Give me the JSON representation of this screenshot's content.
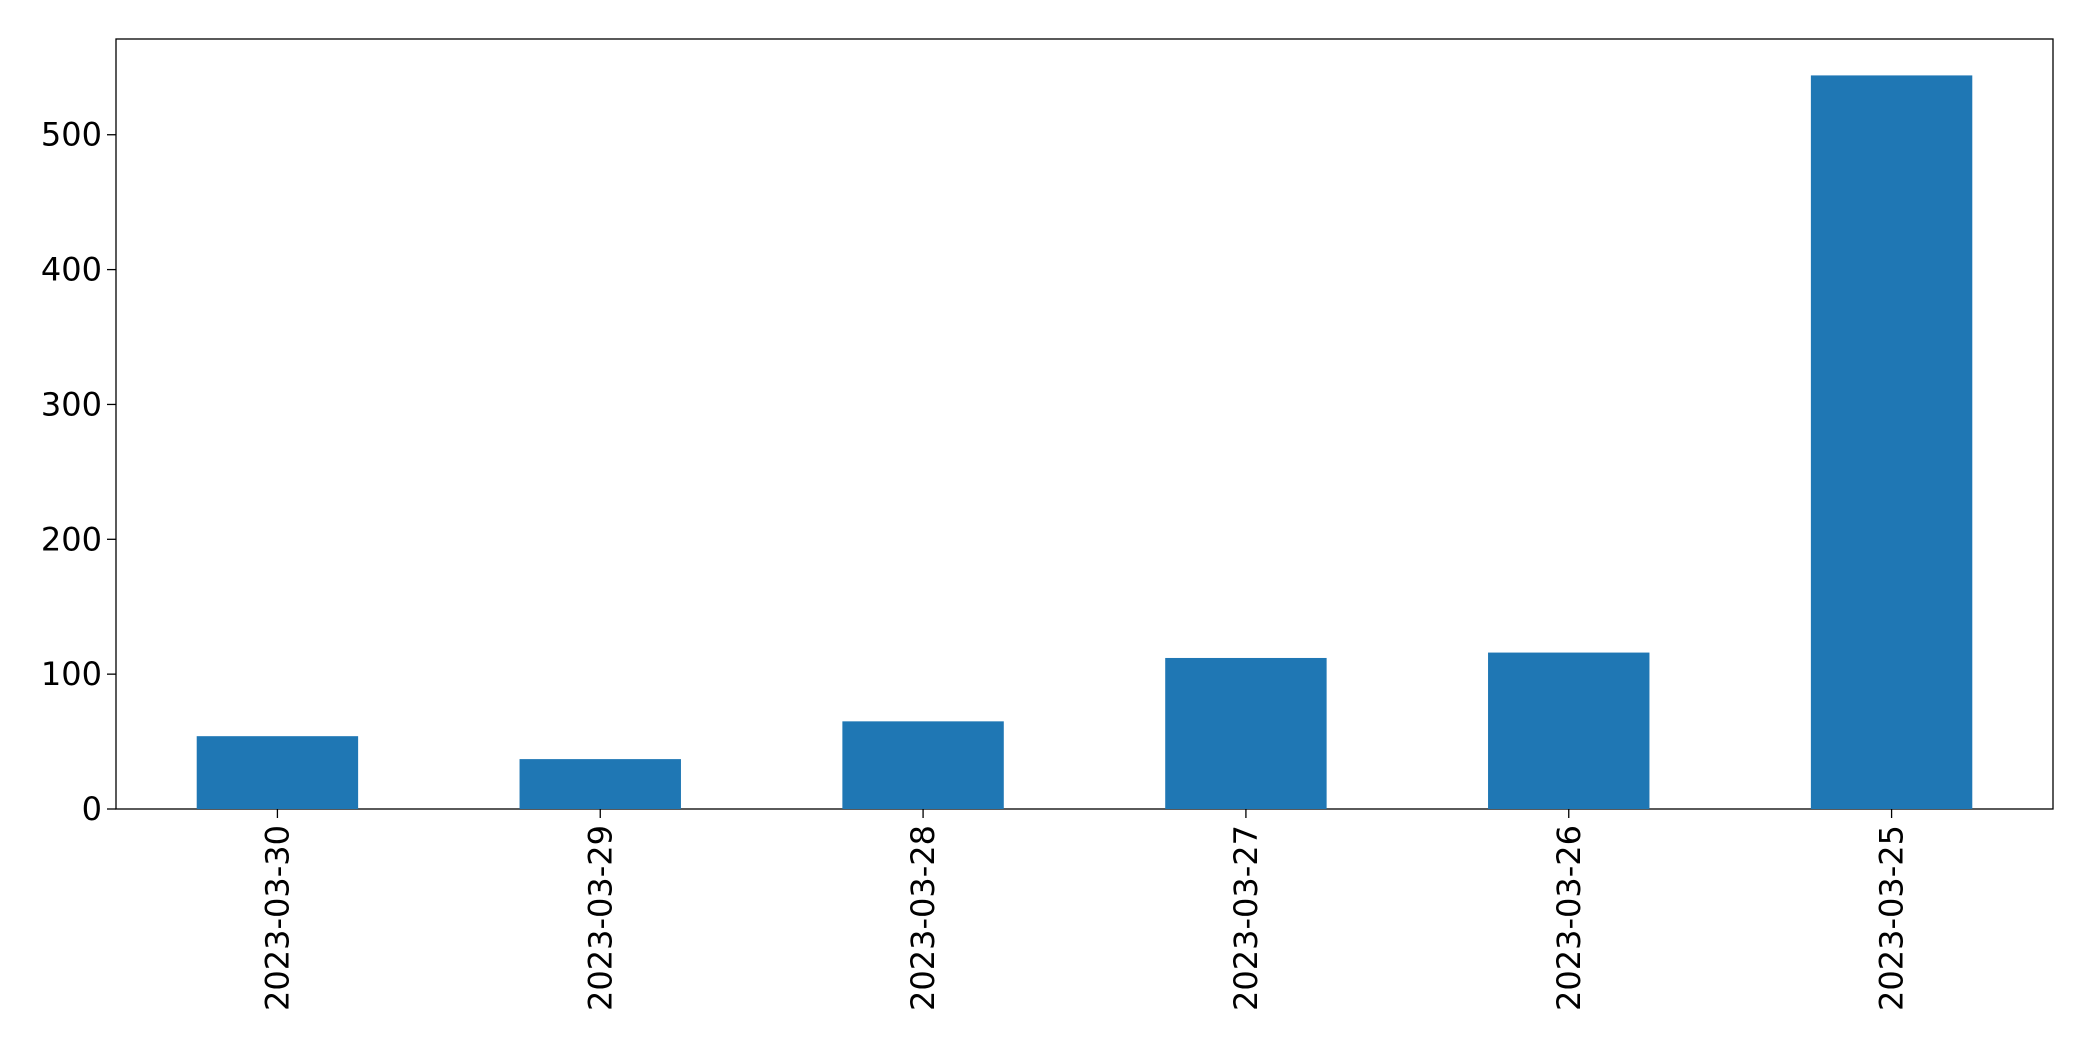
{
  "chart_data": {
    "type": "bar",
    "categories": [
      "2023-03-30",
      "2023-03-29",
      "2023-03-28",
      "2023-03-27",
      "2023-03-26",
      "2023-03-25"
    ],
    "values": [
      54,
      37,
      65,
      112,
      116,
      544
    ],
    "color": "#1f77b4",
    "ylim": [
      0,
      571
    ],
    "yticks": [
      0,
      100,
      200,
      300,
      400,
      500
    ],
    "grid": false
  }
}
